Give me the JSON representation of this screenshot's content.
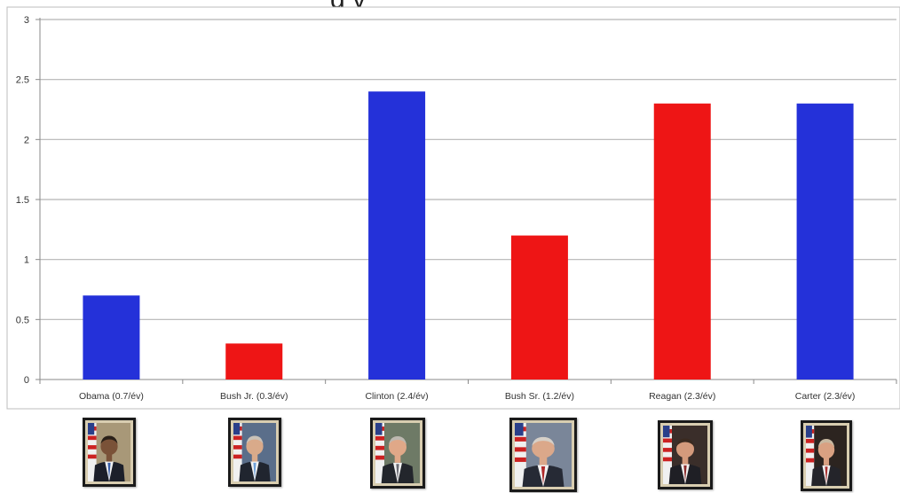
{
  "chart_data": {
    "type": "bar",
    "title": "g y",
    "categories": [
      "Obama (0.7/év)",
      "Bush Jr. (0.3/év)",
      "Clinton (2.4/év)",
      "Bush Sr. (1.2/év)",
      "Reagan (2.3/év)",
      "Carter (2.3/év)"
    ],
    "values": [
      0.7,
      0.3,
      2.4,
      1.2,
      2.3,
      2.3
    ],
    "bar_colors": [
      "#2431d9",
      "#ee1515",
      "#2431d9",
      "#ee1515",
      "#ee1515",
      "#2431d9"
    ],
    "ylim": [
      0,
      3
    ],
    "yticks": [
      "0",
      "0.5",
      "1",
      "1.5",
      "2",
      "2.5",
      "3"
    ],
    "grid": true,
    "xlabel": "",
    "ylabel": ""
  },
  "portraits": [
    {
      "name": "obama-portrait-image",
      "background": "#a89878",
      "suit": "#1c1f2a",
      "tie": "#3a5fa8",
      "skin": "#7a5238",
      "hair": "#2a2018",
      "flag": true
    },
    {
      "name": "bush-jr-portrait-image",
      "background": "#5a6e8a",
      "suit": "#20252f",
      "tie": "#6fa0d8",
      "skin": "#d9aa8a",
      "hair": "#c9c2b8",
      "flag": true
    },
    {
      "name": "clinton-portrait-image",
      "background": "#6e7a66",
      "suit": "#23262c",
      "tie": "#6a6a72",
      "skin": "#e0a888",
      "hair": "#bdb8b0",
      "flag": true
    },
    {
      "name": "bush-sr-portrait-image",
      "background": "#7a8699",
      "suit": "#262a35",
      "tie": "#b02828",
      "skin": "#dba88a",
      "hair": "#d6d0c8",
      "flag": true
    },
    {
      "name": "reagan-portrait-image",
      "background": "#3a2e2a",
      "suit": "#1f1f25",
      "tie": "#8a2a2a",
      "skin": "#d49a7c",
      "hair": "#3a2a20",
      "flag": true
    },
    {
      "name": "carter-portrait-image",
      "background": "#2c2420",
      "suit": "#24242a",
      "tie": "#a83030",
      "skin": "#d9a182",
      "hair": "#c8b8a0",
      "flag": true
    }
  ]
}
